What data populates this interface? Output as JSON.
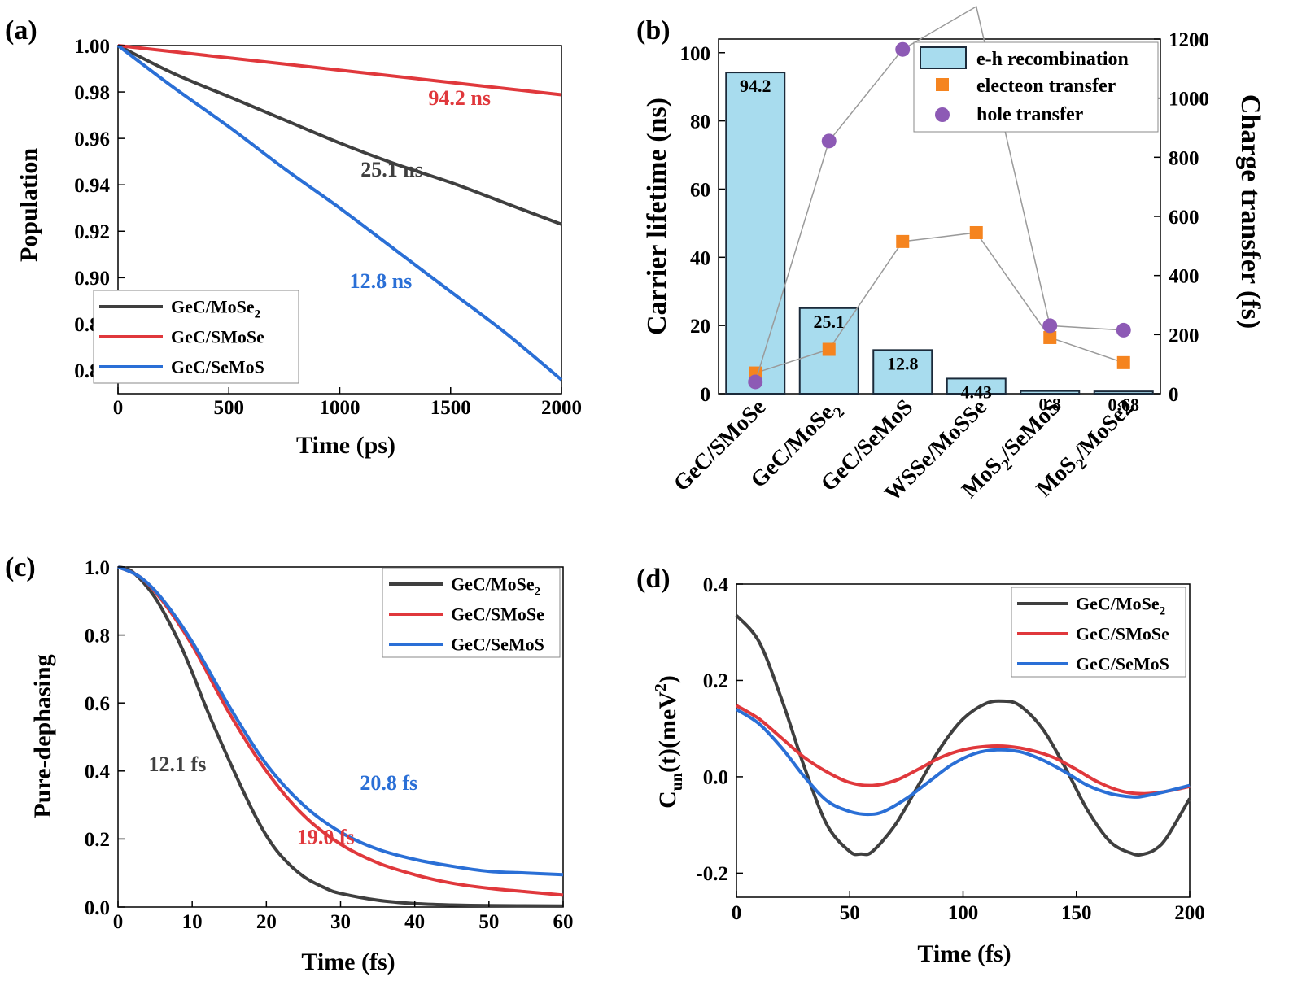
{
  "panel_labels": [
    "(a)",
    "(b)",
    "(c)",
    "(d)"
  ],
  "colors": {
    "black": "#3f3f3f",
    "red": "#e0383c",
    "blue": "#2a6fd6",
    "bar": "#a8dcee",
    "bar_edge": "#1b2a3a",
    "orange": "#f5841f",
    "purple": "#8d5ab5",
    "connector": "#9a9a9a"
  },
  "chart_data": [
    {
      "panel": "(a)",
      "type": "line",
      "xlabel": "Time (ps)",
      "ylabel": "Population",
      "xlim": [
        0,
        2000
      ],
      "ylim": [
        0.85,
        1.0
      ],
      "xticks": [
        0,
        500,
        1000,
        1500,
        2000
      ],
      "yticks": [
        0.86,
        0.88,
        0.9,
        0.92,
        0.94,
        0.96,
        0.98,
        1.0
      ],
      "ytick_labels": [
        "0.86",
        "0.88",
        "0.90",
        "0.92",
        "0.94",
        "0.96",
        "0.98",
        "1.00"
      ],
      "legend": "bottom-left",
      "series": [
        {
          "name": "GeC/MoSe2",
          "base": "GeC/MoSe",
          "sub": "2",
          "color": "black",
          "x": [
            0,
            250,
            500,
            750,
            1000,
            1250,
            1500,
            1750,
            2000
          ],
          "y": [
            1.0,
            0.988,
            0.978,
            0.968,
            0.958,
            0.949,
            0.941,
            0.932,
            0.923
          ]
        },
        {
          "name": "GeC/SMoSe",
          "color": "red",
          "x": [
            0,
            500,
            1000,
            1500,
            2000
          ],
          "y": [
            1.0,
            0.9947,
            0.9894,
            0.9841,
            0.9788
          ]
        },
        {
          "name": "GeC/SeMoS",
          "color": "blue",
          "x": [
            0,
            250,
            500,
            750,
            1000,
            1250,
            1500,
            1750,
            2000
          ],
          "y": [
            1.0,
            0.982,
            0.965,
            0.947,
            0.93,
            0.912,
            0.894,
            0.876,
            0.856
          ]
        }
      ],
      "annotations": [
        {
          "text": "94.2 ns",
          "color": "red",
          "x": 1540,
          "y": 0.9745
        },
        {
          "text": "25.1 ns",
          "color": "black",
          "x": 1235,
          "y": 0.9435
        },
        {
          "text": "12.8 ns",
          "color": "blue",
          "x": 1185,
          "y": 0.8955
        }
      ]
    },
    {
      "panel": "(b)",
      "type": "bar",
      "ylabel": "Carrier lifetime (ns)",
      "y2label": "Charge transfer (fs)",
      "ylim": [
        0,
        104
      ],
      "y2lim": [
        0,
        1200
      ],
      "yticks": [
        0,
        20,
        40,
        60,
        80,
        100
      ],
      "y2ticks": [
        0,
        200,
        400,
        600,
        800,
        1000,
        1200
      ],
      "categories": [
        {
          "base": "GeC/SMoSe",
          "sub": "",
          "tail": ""
        },
        {
          "base": "GeC/MoSe",
          "sub": "2",
          "tail": ""
        },
        {
          "base": "GeC/SeMoS",
          "sub": "",
          "tail": ""
        },
        {
          "base": "WSSe/MoSSe",
          "sub": "",
          "tail": ""
        },
        {
          "base": "MoS",
          "sub": "2",
          "tail": "/SeMoS"
        },
        {
          "base": "MoS",
          "sub": "2",
          "tail": "/MoSe2"
        }
      ],
      "category_names": [
        "GeC/SMoSe",
        "GeC/MoSe2",
        "GeC/SeMoS",
        "WSSe/MoSSe",
        "MoS2/SeMoS",
        "MoS2/MoSe2"
      ],
      "bar_values": [
        94.2,
        25.1,
        12.8,
        4.43,
        0.8,
        0.68
      ],
      "bar_labels": [
        "94.2",
        "25.1",
        "12.8",
        "4.43",
        "0.8",
        "0.68"
      ],
      "legend": "top-right",
      "series": [
        {
          "name": "e-h recombination",
          "kind": "bar",
          "axis": "left"
        },
        {
          "name": "electeon transfer",
          "kind": "square",
          "axis": "right",
          "values": [
            70,
            150,
            515,
            545,
            190,
            105
          ]
        },
        {
          "name": "hole transfer",
          "kind": "circle",
          "axis": "right",
          "values": [
            40,
            855,
            1165,
            null,
            230,
            215
          ]
        }
      ],
      "notes": "Hole transfer for WSSe/MoSSe is off the top of the axis; connector line exits above 1200."
    },
    {
      "panel": "(c)",
      "type": "line",
      "xlabel": "Time (fs)",
      "ylabel": "Pure-dephasing",
      "xlim": [
        0,
        60
      ],
      "ylim": [
        0,
        1.0
      ],
      "xticks": [
        0,
        10,
        20,
        30,
        40,
        50,
        60
      ],
      "yticks": [
        0.0,
        0.2,
        0.4,
        0.6,
        0.8,
        1.0
      ],
      "ytick_labels": [
        "0.0",
        "0.2",
        "0.4",
        "0.6",
        "0.8",
        "1.0"
      ],
      "legend": "top-right",
      "series": [
        {
          "name": "GeC/MoSe2",
          "base": "GeC/MoSe",
          "sub": "2",
          "color": "black",
          "x": [
            0,
            2,
            5,
            8,
            10,
            12,
            15,
            18,
            20,
            22,
            25,
            28,
            30,
            35,
            40,
            45,
            50,
            60
          ],
          "y": [
            1.0,
            0.985,
            0.91,
            0.79,
            0.69,
            0.58,
            0.43,
            0.29,
            0.21,
            0.15,
            0.09,
            0.055,
            0.04,
            0.02,
            0.01,
            0.006,
            0.004,
            0.003
          ]
        },
        {
          "name": "GeC/SMoSe",
          "color": "red",
          "x": [
            0,
            3,
            6,
            10,
            15,
            20,
            25,
            30,
            35,
            40,
            45,
            50,
            55,
            60
          ],
          "y": [
            1.0,
            0.97,
            0.9,
            0.77,
            0.57,
            0.4,
            0.27,
            0.185,
            0.13,
            0.095,
            0.07,
            0.055,
            0.045,
            0.035
          ]
        },
        {
          "name": "GeC/SeMoS",
          "color": "blue",
          "x": [
            0,
            3,
            6,
            10,
            15,
            20,
            25,
            30,
            35,
            40,
            45,
            50,
            55,
            60
          ],
          "y": [
            1.0,
            0.97,
            0.905,
            0.78,
            0.59,
            0.42,
            0.3,
            0.22,
            0.17,
            0.14,
            0.12,
            0.105,
            0.1,
            0.095
          ]
        }
      ],
      "annotations": [
        {
          "text": "12.1 fs",
          "color": "black",
          "x": 8.0,
          "y": 0.4
        },
        {
          "text": "20.8 fs",
          "color": "blue",
          "x": 36.5,
          "y": 0.345
        },
        {
          "text": "19.0 fs",
          "color": "red",
          "x": 28.0,
          "y": 0.185
        }
      ]
    },
    {
      "panel": "(d)",
      "type": "line",
      "xlabel": "Time (fs)",
      "ylabel_main": "C",
      "ylabel_sub": "un",
      "ylabel_mid": "(t)(meV",
      "ylabel_sup": "2",
      "ylabel_end": ")",
      "ylabel": "Cun(t)(meV2)",
      "xlim": [
        0,
        200
      ],
      "ylim": [
        -0.25,
        0.4
      ],
      "xticks": [
        0,
        50,
        100,
        150,
        200
      ],
      "yticks": [
        -0.2,
        0.0,
        0.2,
        0.4
      ],
      "ytick_labels": [
        "-0.2",
        "0.0",
        "0.2",
        "0.4"
      ],
      "legend": "top-right",
      "series": [
        {
          "name": "GeC/MoSe2",
          "base": "GeC/MoSe",
          "sub": "2",
          "color": "black",
          "x": [
            0,
            10,
            20,
            30,
            40,
            50,
            55,
            60,
            70,
            80,
            90,
            100,
            110,
            118,
            125,
            135,
            145,
            155,
            165,
            175,
            180,
            185,
            190,
            200
          ],
          "y": [
            0.335,
            0.28,
            0.16,
            0.02,
            -0.1,
            -0.155,
            -0.16,
            -0.155,
            -0.1,
            -0.02,
            0.06,
            0.12,
            0.152,
            0.157,
            0.148,
            0.1,
            0.02,
            -0.07,
            -0.135,
            -0.16,
            -0.16,
            -0.15,
            -0.125,
            -0.045
          ]
        },
        {
          "name": "GeC/SMoSe",
          "color": "red",
          "x": [
            0,
            10,
            20,
            30,
            40,
            50,
            60,
            70,
            80,
            90,
            100,
            110,
            120,
            130,
            140,
            150,
            160,
            170,
            180,
            190,
            200
          ],
          "y": [
            0.148,
            0.12,
            0.08,
            0.04,
            0.01,
            -0.012,
            -0.018,
            -0.008,
            0.015,
            0.04,
            0.056,
            0.063,
            0.063,
            0.055,
            0.04,
            0.015,
            -0.012,
            -0.03,
            -0.035,
            -0.03,
            -0.02
          ]
        },
        {
          "name": "GeC/SeMoS",
          "color": "blue",
          "x": [
            0,
            10,
            20,
            30,
            40,
            50,
            58,
            65,
            75,
            85,
            95,
            105,
            115,
            125,
            135,
            145,
            155,
            165,
            175,
            180,
            190,
            200
          ],
          "y": [
            0.14,
            0.11,
            0.06,
            0.0,
            -0.05,
            -0.072,
            -0.078,
            -0.072,
            -0.045,
            -0.01,
            0.025,
            0.048,
            0.056,
            0.052,
            0.035,
            0.01,
            -0.018,
            -0.035,
            -0.042,
            -0.04,
            -0.03,
            -0.018
          ]
        }
      ]
    }
  ]
}
